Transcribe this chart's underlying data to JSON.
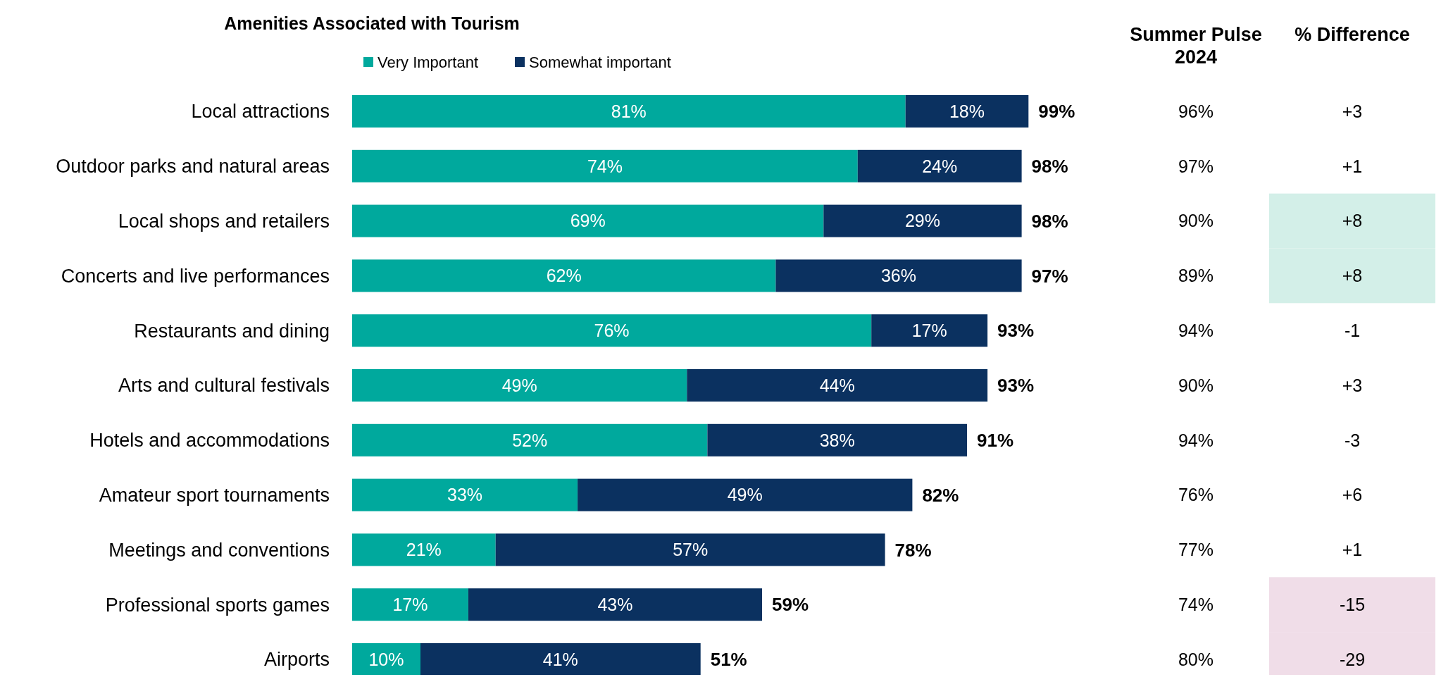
{
  "chart_data": [
    {
      "type": "bar",
      "orientation": "horizontal",
      "stacked": true,
      "title": "Amenities Associated with Tourism",
      "categories": [
        "Local attractions",
        "Outdoor parks and natural areas",
        "Local shops and retailers",
        "Concerts and live performances",
        "Restaurants and dining",
        "Arts and cultural festivals",
        "Hotels and accommodations",
        "Amateur sport tournaments",
        "Meetings and conventions",
        "Professional sports games",
        "Airports"
      ],
      "series": [
        {
          "name": "Very Important",
          "color": "#00a99d",
          "values": [
            81,
            74,
            69,
            62,
            76,
            49,
            52,
            33,
            21,
            17,
            10
          ],
          "value_labels": [
            "81%",
            "74%",
            "69%",
            "62%",
            "76%",
            "49%",
            "52%",
            "33%",
            "21%",
            "17%",
            "10%"
          ]
        },
        {
          "name": "Somewhat important",
          "color": "#0b3160",
          "values": [
            18,
            24,
            29,
            36,
            17,
            44,
            38,
            49,
            57,
            43,
            41
          ],
          "value_labels": [
            "18%",
            "24%",
            "29%",
            "36%",
            "17%",
            "44%",
            "38%",
            "49%",
            "57%",
            "43%",
            "41%"
          ]
        }
      ],
      "totals": [
        "99%",
        "98%",
        "98%",
        "97%",
        "93%",
        "93%",
        "91%",
        "82%",
        "78%",
        "59%",
        "51%"
      ],
      "legend": "top",
      "tick_labels": "y"
    },
    {
      "type": "other",
      "title": "Summer Pulse 2024",
      "annotations": [
        "96%",
        "97%",
        "90%",
        "89%",
        "94%",
        "90%",
        "94%",
        "76%",
        "77%",
        "74%",
        "80%"
      ]
    },
    {
      "type": "other",
      "title": "% Difference",
      "annotations": [
        "+3",
        "+1",
        "+8",
        "+8",
        "-1",
        "+3",
        "-3",
        "+6",
        "+1",
        "-15",
        "-29"
      ],
      "colors": [
        null,
        null,
        "#d3efe8",
        "#d3efe8",
        null,
        null,
        null,
        null,
        null,
        "#f0dde8",
        "#f0dde8"
      ]
    }
  ]
}
